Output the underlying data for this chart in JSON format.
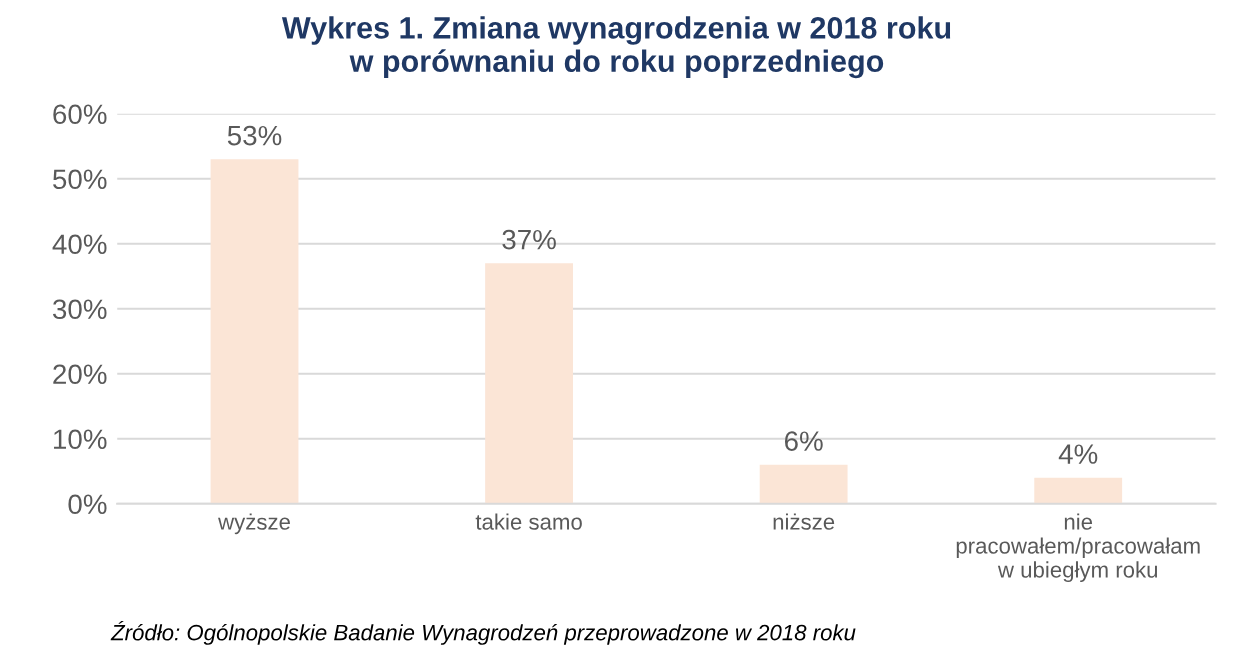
{
  "chart_data": {
    "type": "bar",
    "title": "Wykres 1. Zmiana wynagrodzenia w 2018 roku\nw porównaniu do roku poprzedniego",
    "categories": [
      "wyższe",
      "takie samo",
      "niższe",
      "nie\npracowałem/pracowałam\nw ubiegłym roku"
    ],
    "values": [
      53,
      37,
      6,
      4
    ],
    "color": "#fbe5d6",
    "value_labels": [
      "53%",
      "37%",
      "6%",
      "4%"
    ],
    "ylim": [
      0,
      60
    ],
    "yticks": [
      {
        "value": 0,
        "label": "0%"
      },
      {
        "value": 10,
        "label": "10%"
      },
      {
        "value": 20,
        "label": "20%"
      },
      {
        "value": 30,
        "label": "30%"
      },
      {
        "value": 40,
        "label": "40%"
      },
      {
        "value": 50,
        "label": "50%"
      },
      {
        "value": 60,
        "label": "60%"
      }
    ],
    "grid": "y",
    "annotations": [
      "Źródło: Ogólnopolskie Badanie Wynagrodzeń przeprowadzone w 2018 roku"
    ]
  }
}
